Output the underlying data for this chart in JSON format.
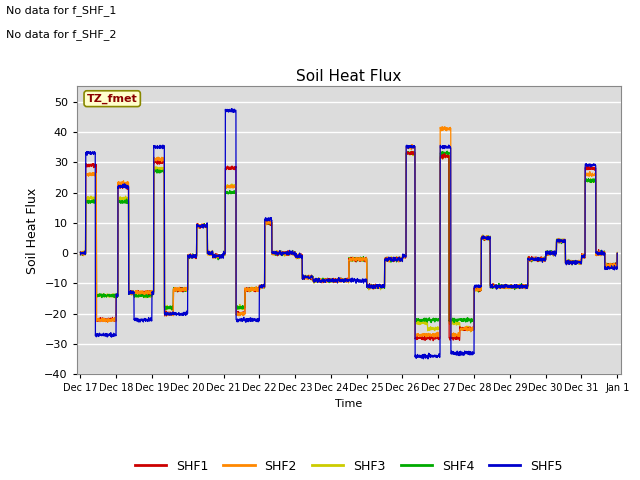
{
  "title": "Soil Heat Flux",
  "ylabel": "Soil Heat Flux",
  "xlabel": "Time",
  "ylim": [
    -40,
    55
  ],
  "yticks": [
    -40,
    -30,
    -20,
    -10,
    0,
    10,
    20,
    30,
    40,
    50
  ],
  "bg_color": "#dcdcdc",
  "text_no_data": [
    "No data for f_SHF_1",
    "No data for f_SHF_2"
  ],
  "tz_label": "TZ_fmet",
  "series_colors": {
    "SHF1": "#cc0000",
    "SHF2": "#ff8800",
    "SHF3": "#cccc00",
    "SHF4": "#00aa00",
    "SHF5": "#0000cc"
  },
  "xticklabels": [
    "Dec 17",
    "Dec 18",
    "Dec 19",
    "Dec 20",
    "Dec 21",
    "Dec 22",
    "Dec 23",
    "Dec 24",
    "Dec 25",
    "Dec 26",
    "Dec 27",
    "Dec 28",
    "Dec 29",
    "Dec 30",
    "Dec 31",
    "Jan 1"
  ],
  "xticks_pos": [
    0,
    1,
    2,
    3,
    4,
    5,
    6,
    7,
    8,
    9,
    10,
    11,
    12,
    13,
    14,
    15
  ]
}
